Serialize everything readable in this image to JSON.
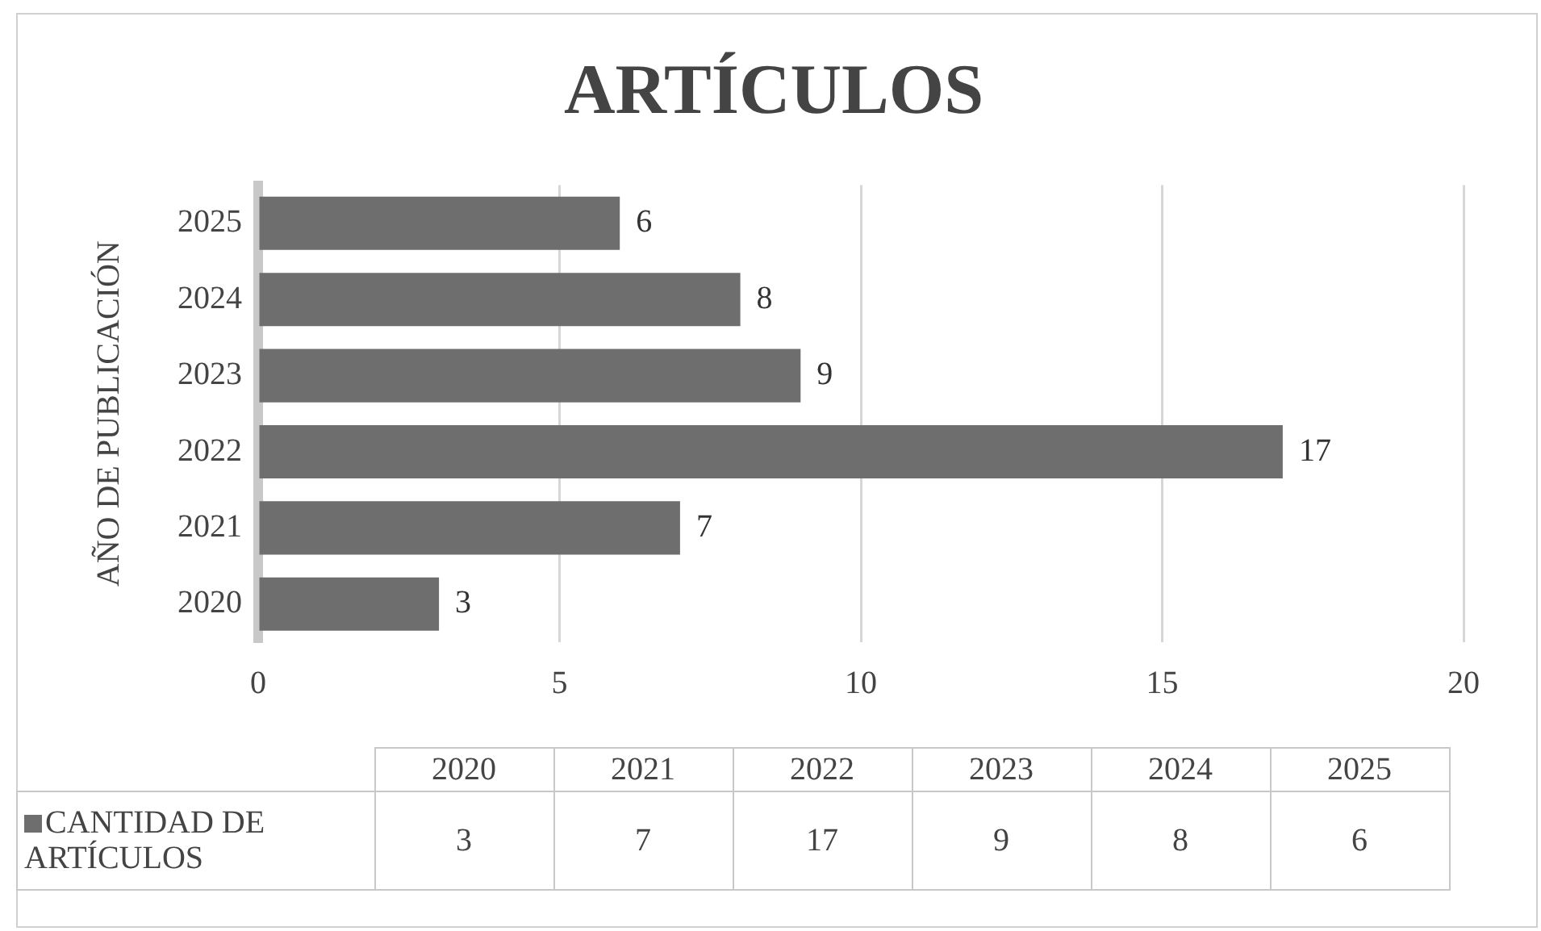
{
  "chart_data": {
    "type": "bar",
    "orientation": "horizontal",
    "title": "ARTÍCULOS",
    "ylabel": "AÑO DE PUBLICACIÓN",
    "categories": [
      "2025",
      "2024",
      "2023",
      "2022",
      "2021",
      "2020"
    ],
    "series": [
      {
        "name": "CANTIDAD DE ARTÍCULOS",
        "color": "#6e6e6e",
        "values": [
          6,
          8,
          9,
          17,
          7,
          3
        ]
      }
    ],
    "xlim": [
      0,
      20
    ],
    "xticks": [
      0,
      5,
      10,
      15,
      20
    ],
    "grid": "x",
    "legend": "bottom",
    "data_labels": true,
    "annotations": [
      "3",
      "7",
      "17",
      "9",
      "8",
      "6"
    ]
  }
}
